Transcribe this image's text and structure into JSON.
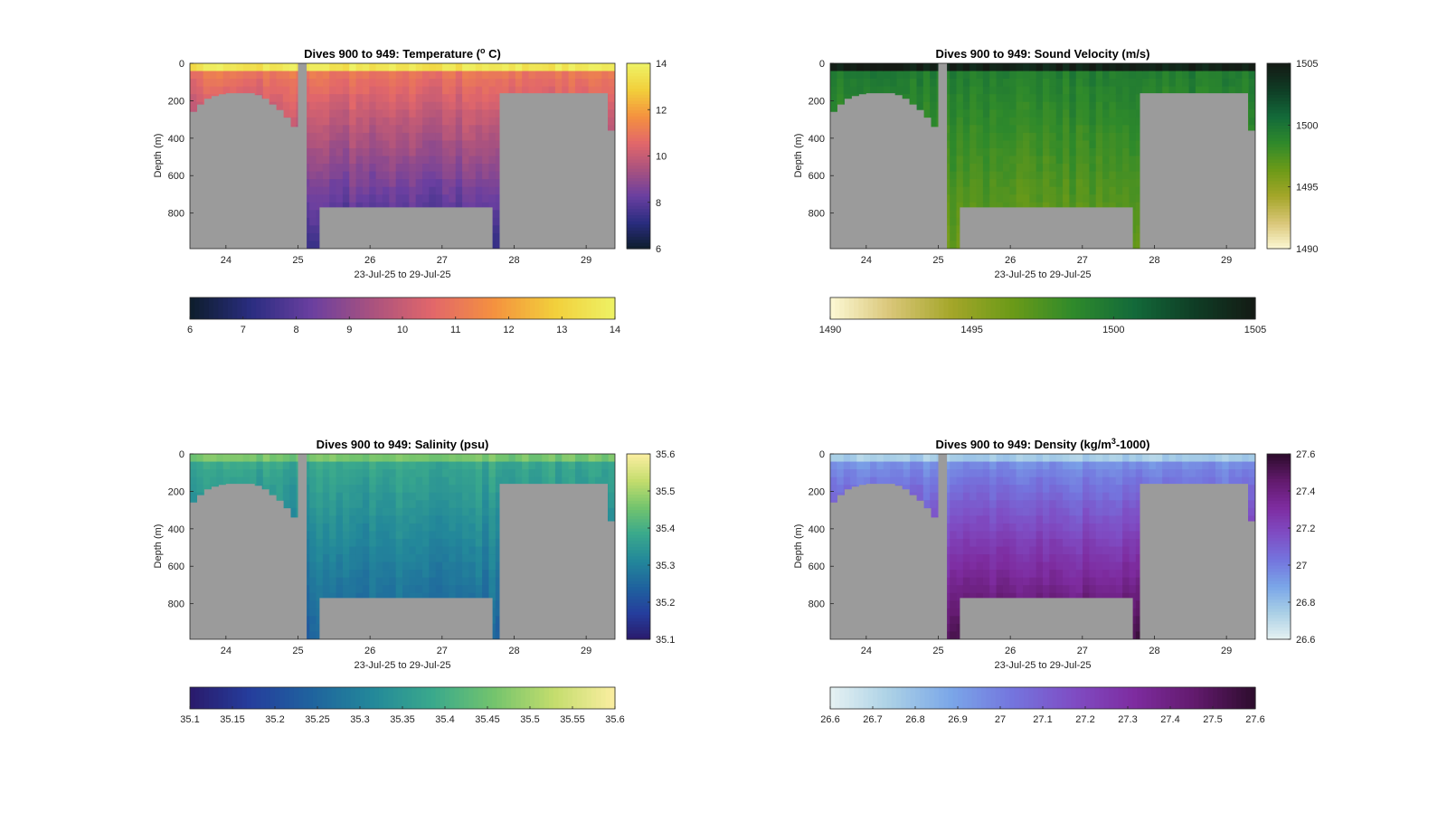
{
  "figure": {
    "background": "#ffffff",
    "land_color": "#9b9b9b"
  },
  "chart_data": [
    {
      "type": "heatmap",
      "id": "temperature",
      "title": "Dives 900 to 949: Temperature (",
      "title_sup": "o",
      "title_tail": " C)",
      "xlabel": "23-Jul-25 to 29-Jul-25",
      "ylabel": "Depth (m)",
      "xlim": [
        23.5,
        29.4
      ],
      "ylim": [
        990,
        0
      ],
      "xticks": [
        24,
        25,
        26,
        27,
        28,
        29
      ],
      "yticks": [
        0,
        200,
        400,
        600,
        800
      ],
      "colorbar": {
        "min": 6,
        "max": 14,
        "ticks": [
          6,
          8,
          10,
          12,
          14
        ],
        "colormap": [
          "#0d1d2b",
          "#2a2d80",
          "#6a3fa0",
          "#a9527f",
          "#e2676a",
          "#f4913f",
          "#f2cf3b",
          "#eef265"
        ]
      },
      "hcolorbar": {
        "ticks": [
          6,
          7,
          8,
          9,
          10,
          11,
          12,
          13,
          14
        ]
      },
      "field": {
        "surface_value": 13.6,
        "mid_value": 11.0,
        "deep_value": 7.3,
        "mixed_depth": 60
      },
      "seafloor": {
        "x": [
          23.5,
          23.6,
          23.7,
          23.8,
          23.9,
          24.0,
          24.1,
          24.2,
          24.3,
          24.4,
          24.5,
          24.6,
          24.7,
          24.8,
          24.9,
          25.0,
          25.1,
          25.2,
          25.3,
          27.7,
          27.8,
          29.2,
          29.3
        ],
        "depth": [
          260,
          220,
          190,
          175,
          165,
          160,
          160,
          160,
          160,
          170,
          190,
          220,
          250,
          290,
          340,
          440,
          990,
          990,
          770,
          990,
          160,
          160,
          360
        ]
      }
    },
    {
      "type": "heatmap",
      "id": "sound_velocity",
      "title": "Dives 900 to 949: Sound Velocity (m/s)",
      "xlabel": "23-Jul-25 to 29-Jul-25",
      "ylabel": "Depth (m)",
      "xlim": [
        23.5,
        29.4
      ],
      "ylim": [
        990,
        0
      ],
      "xticks": [
        24,
        25,
        26,
        27,
        28,
        29
      ],
      "yticks": [
        0,
        200,
        400,
        600,
        800
      ],
      "colorbar": {
        "min": 1490,
        "max": 1505,
        "ticks": [
          1490,
          1495,
          1500,
          1505
        ],
        "colormap": [
          "#fdf9d5",
          "#d9c677",
          "#a4a629",
          "#6b9a18",
          "#2f8a2b",
          "#136a3a",
          "#0f3d25",
          "#141a14"
        ]
      },
      "hcolorbar": {
        "ticks": [
          1490,
          1495,
          1500,
          1505
        ]
      },
      "field": {
        "surface_value": 1504.5,
        "mid_value": 1499.5,
        "deep_value": 1496.5,
        "mixed_depth": 60
      },
      "seafloor": {
        "x": [
          23.5,
          23.6,
          23.7,
          23.8,
          23.9,
          24.0,
          24.1,
          24.2,
          24.3,
          24.4,
          24.5,
          24.6,
          24.7,
          24.8,
          24.9,
          25.0,
          25.1,
          25.2,
          25.3,
          27.7,
          27.8,
          29.2,
          29.3
        ],
        "depth": [
          260,
          220,
          190,
          175,
          165,
          160,
          160,
          160,
          160,
          170,
          190,
          220,
          250,
          290,
          340,
          440,
          990,
          990,
          770,
          990,
          160,
          160,
          360
        ]
      }
    },
    {
      "type": "heatmap",
      "id": "salinity",
      "title": "Dives 900 to 949: Salinity (psu)",
      "xlabel": "23-Jul-25 to 29-Jul-25",
      "ylabel": "Depth (m)",
      "xlim": [
        23.5,
        29.4
      ],
      "ylim": [
        990,
        0
      ],
      "xticks": [
        24,
        25,
        26,
        27,
        28,
        29
      ],
      "yticks": [
        0,
        200,
        400,
        600,
        800
      ],
      "colorbar": {
        "min": 35.1,
        "max": 35.6,
        "ticks": [
          35.1,
          35.2,
          35.3,
          35.4,
          35.5,
          35.6
        ],
        "colormap": [
          "#2a1a6b",
          "#253e9d",
          "#1f639e",
          "#23889a",
          "#3aa98c",
          "#73c46d",
          "#c4dd6d",
          "#fbeea1"
        ]
      },
      "hcolorbar": {
        "ticks": [
          35.1,
          35.15,
          35.2,
          35.25,
          35.3,
          35.35,
          35.4,
          35.45,
          35.5,
          35.55,
          35.6
        ]
      },
      "field": {
        "surface_value": 35.46,
        "mid_value": 35.38,
        "deep_value": 35.24,
        "mixed_depth": 60
      },
      "seafloor": {
        "x": [
          23.5,
          23.6,
          23.7,
          23.8,
          23.9,
          24.0,
          24.1,
          24.2,
          24.3,
          24.4,
          24.5,
          24.6,
          24.7,
          24.8,
          24.9,
          25.0,
          25.1,
          25.2,
          25.3,
          27.7,
          27.8,
          29.2,
          29.3
        ],
        "depth": [
          260,
          220,
          190,
          175,
          165,
          160,
          160,
          160,
          160,
          170,
          190,
          220,
          250,
          290,
          340,
          440,
          990,
          990,
          770,
          990,
          160,
          160,
          360
        ]
      }
    },
    {
      "type": "heatmap",
      "id": "density",
      "title": "Dives 900 to 949: Density (kg/m",
      "title_sup": "3",
      "title_tail": "-1000)",
      "xlabel": "23-Jul-25 to 29-Jul-25",
      "ylabel": "Depth (m)",
      "xlim": [
        23.5,
        29.4
      ],
      "ylim": [
        990,
        0
      ],
      "xticks": [
        24,
        25,
        26,
        27,
        28,
        29
      ],
      "yticks": [
        0,
        200,
        400,
        600,
        800
      ],
      "colorbar": {
        "min": 26.6,
        "max": 27.6,
        "ticks": [
          26.6,
          26.8,
          27,
          27.2,
          27.4,
          27.6
        ],
        "colormap": [
          "#e6f2f2",
          "#aad0e6",
          "#7aa6e8",
          "#7475de",
          "#7f4dc4",
          "#7e2ca0",
          "#621a6d",
          "#2d0c2c"
        ]
      },
      "hcolorbar": {
        "ticks": [
          26.6,
          26.7,
          26.8,
          26.9,
          27,
          27.1,
          27.2,
          27.3,
          27.4,
          27.5,
          27.6
        ]
      },
      "field": {
        "surface_value": 26.75,
        "mid_value": 26.95,
        "deep_value": 27.52,
        "mixed_depth": 60
      },
      "seafloor": {
        "x": [
          23.5,
          23.6,
          23.7,
          23.8,
          23.9,
          24.0,
          24.1,
          24.2,
          24.3,
          24.4,
          24.5,
          24.6,
          24.7,
          24.8,
          24.9,
          25.0,
          25.1,
          25.2,
          25.3,
          27.7,
          27.8,
          29.2,
          29.3
        ],
        "depth": [
          260,
          220,
          190,
          175,
          165,
          160,
          160,
          160,
          160,
          170,
          190,
          220,
          250,
          290,
          340,
          440,
          990,
          990,
          770,
          990,
          160,
          160,
          360
        ]
      }
    }
  ]
}
